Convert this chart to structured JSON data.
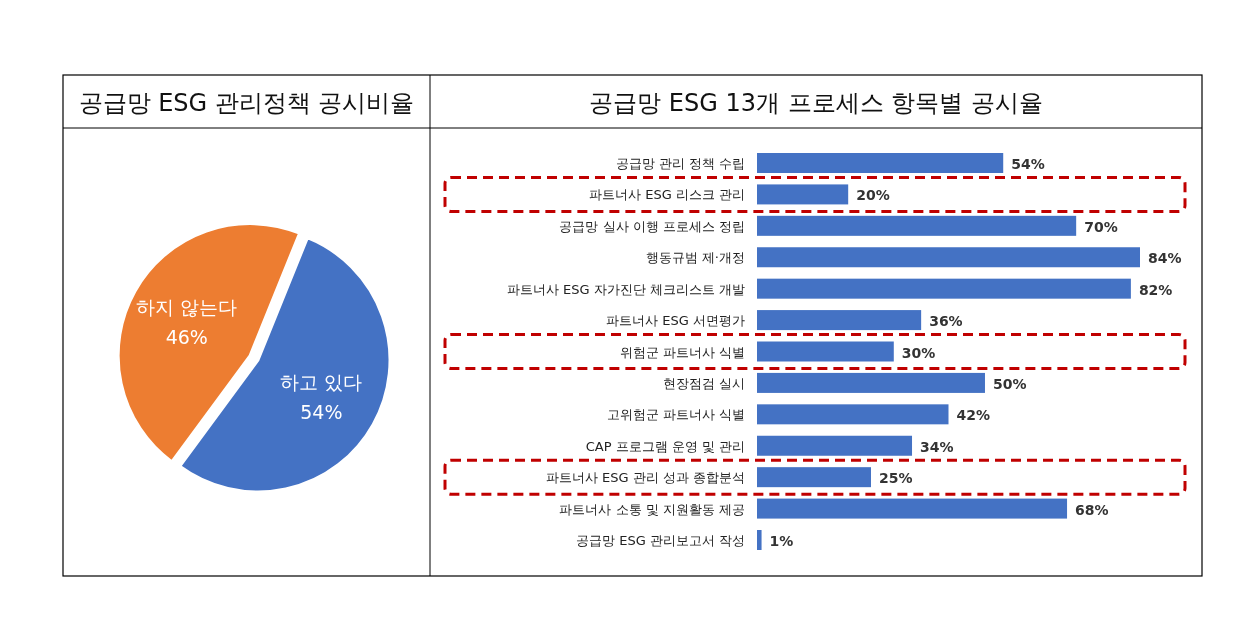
{
  "chart_data": [
    {
      "type": "pie",
      "title": "공급망 ESG 관리정책 공시비율",
      "categories": [
        "하고 있다",
        "하지 않는다"
      ],
      "values": [
        54,
        46
      ],
      "colors": [
        "#4472c4",
        "#ed7d31"
      ],
      "data_labels": true,
      "value_labels": [
        "54%",
        "46%"
      ]
    },
    {
      "type": "bar",
      "orientation": "horizontal",
      "title": "공급망 ESG 13개 프로세스 항목별 공시율",
      "categories": [
        "공급망 관리 정책 수립",
        "파트너사 ESG 리스크 관리",
        "공급망 실사 이행 프로세스 정립",
        "행동규범 제·개정",
        "파트너사 ESG 자가진단 체크리스트 개발",
        "파트너사 ESG 서면평가",
        "위험군 파트너사 식별",
        "현장점검 실시",
        "고위험군 파트너사 식별",
        "CAP 프로그램 운영 및 관리",
        "파트너사 ESG 관리 성과 종합분석",
        "파트너사 소통 및 지원활동 제공",
        "공급망 ESG 관리보고서 작성"
      ],
      "values": [
        54,
        20,
        70,
        84,
        82,
        36,
        30,
        50,
        42,
        34,
        25,
        68,
        1
      ],
      "color": "#4472c4",
      "value_labels": [
        "54%",
        "20%",
        "70%",
        "84%",
        "82%",
        "36%",
        "30%",
        "50%",
        "42%",
        "34%",
        "25%",
        "68%",
        "1%"
      ]
    }
  ]
}
